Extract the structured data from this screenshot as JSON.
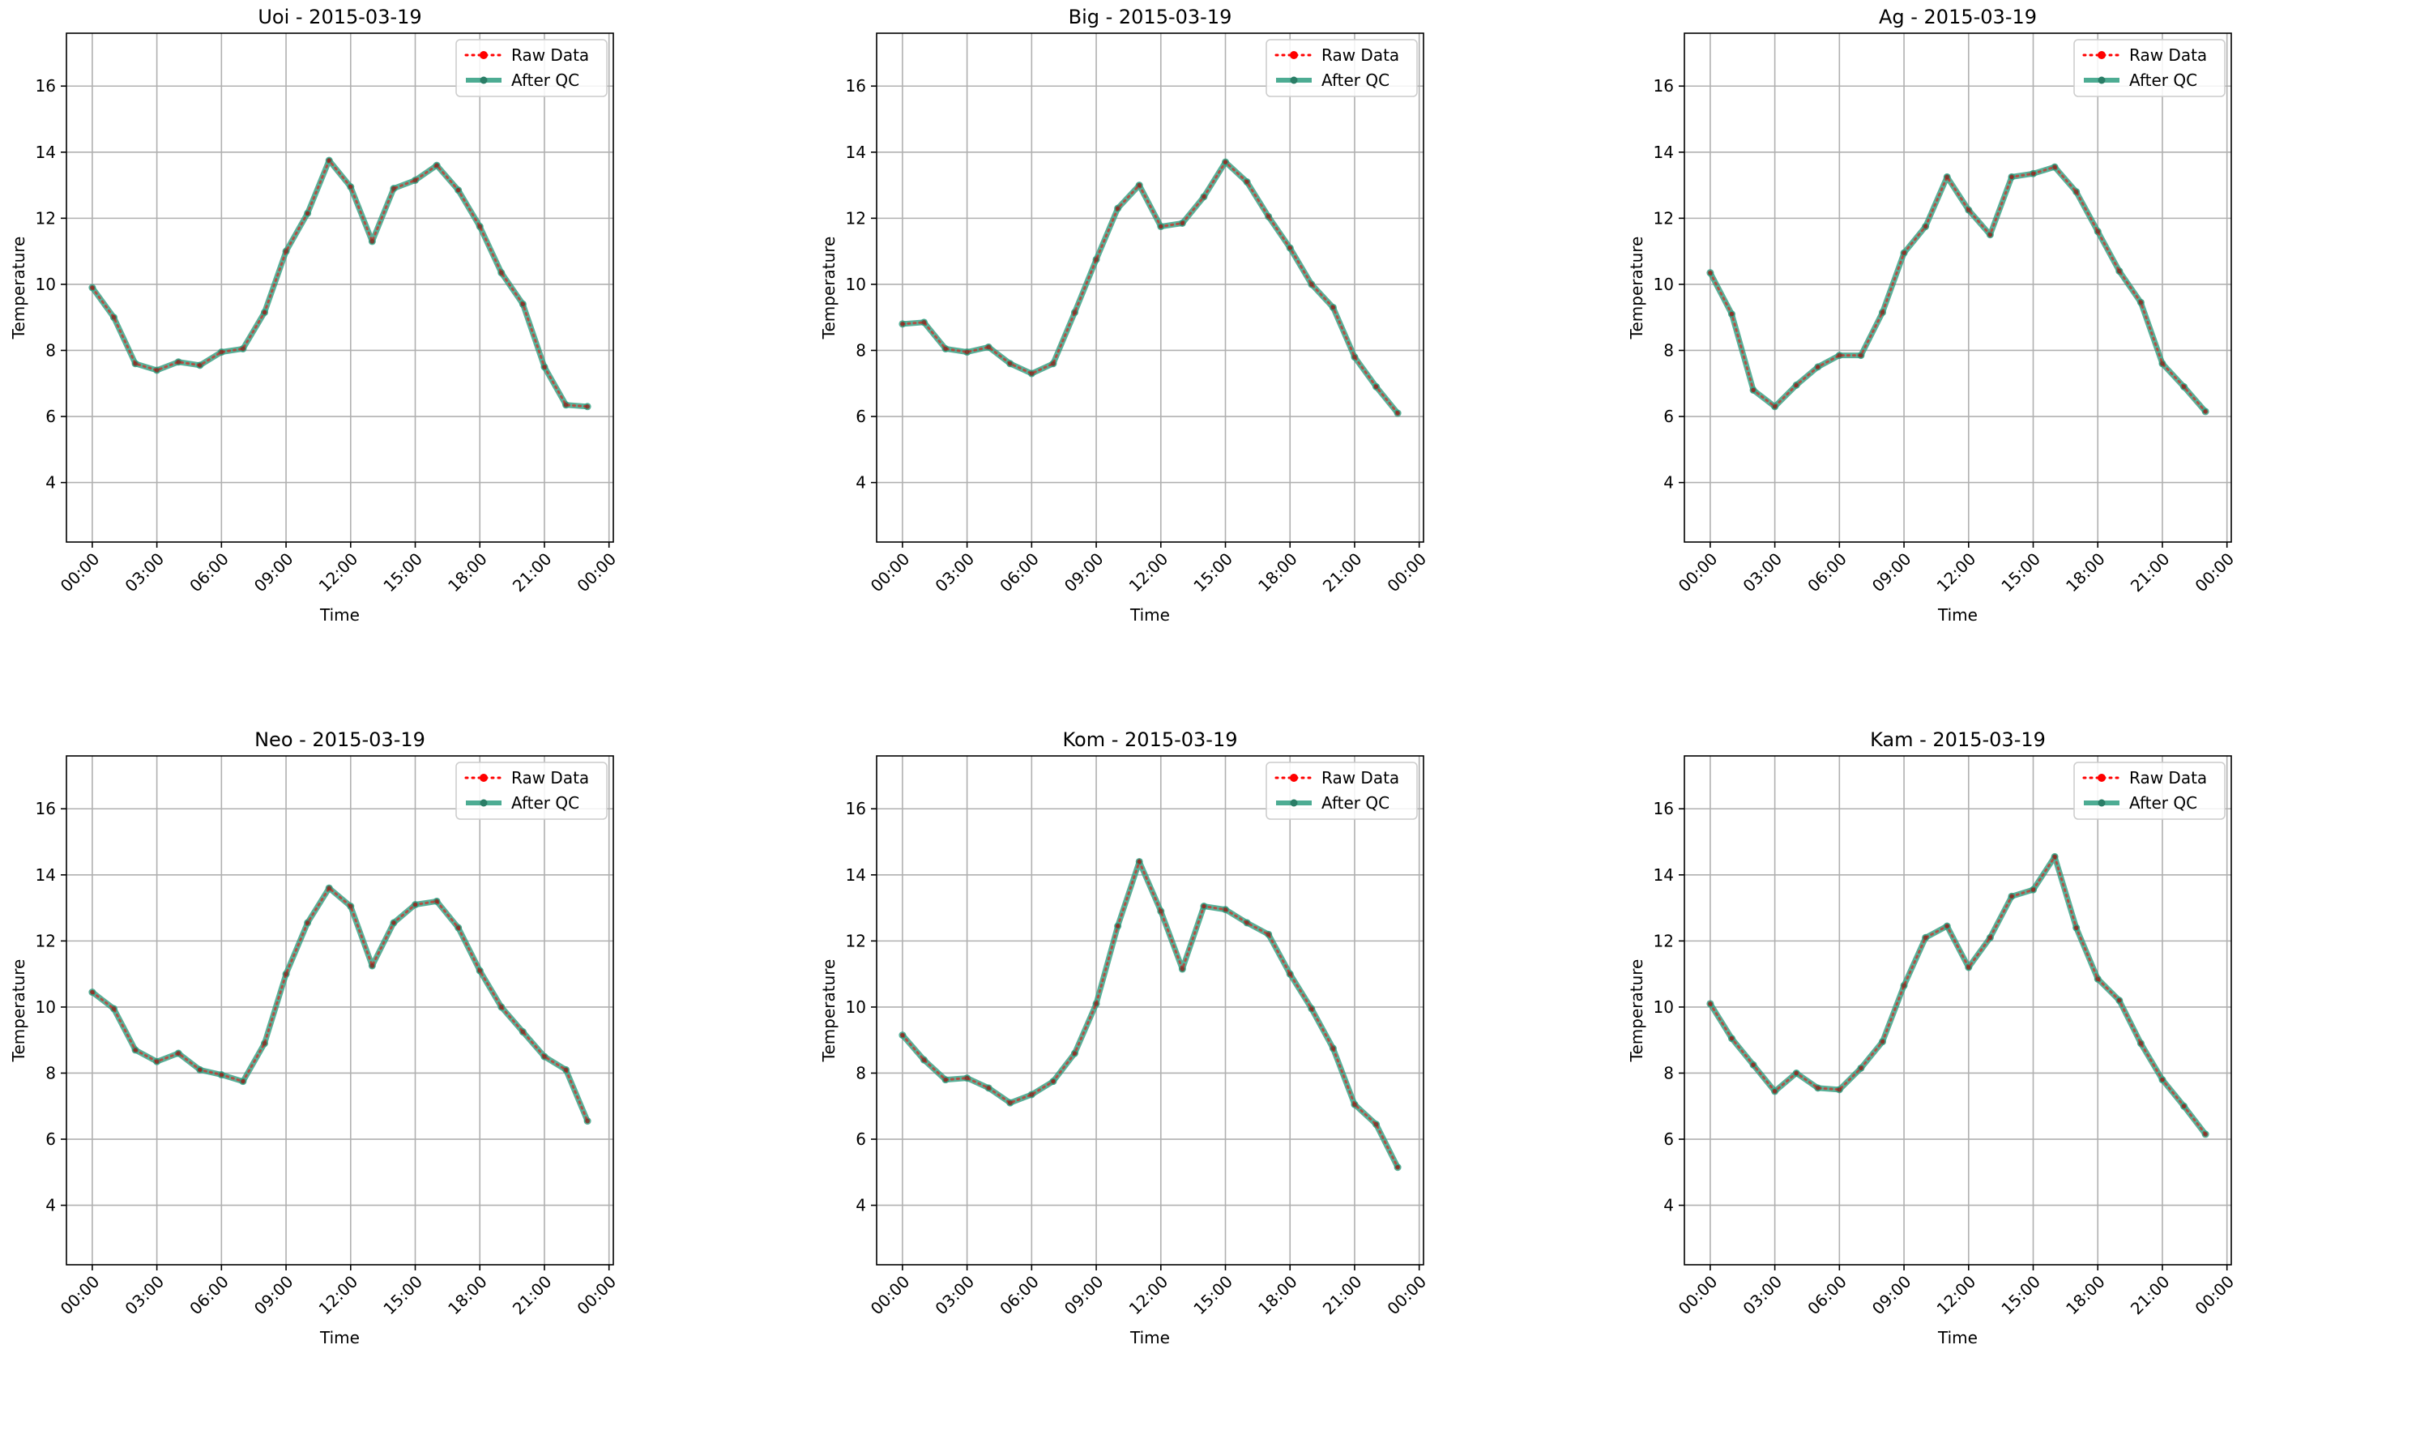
{
  "chart_data": [
    {
      "type": "line",
      "title": "Uoi - 2015-03-19",
      "xlabel": "Time",
      "ylabel": "Temperature",
      "ylim": [
        2.2,
        17.6
      ],
      "yticks": [
        4,
        6,
        8,
        10,
        12,
        14,
        16
      ],
      "xticks": [
        "00:00",
        "03:00",
        "06:00",
        "09:00",
        "12:00",
        "15:00",
        "18:00",
        "21:00",
        "00:00"
      ],
      "grid": true,
      "legend": "top-right",
      "series": [
        {
          "name": "Raw Data",
          "color": "#ff0000",
          "style": "dotted",
          "values": [
            9.9,
            9.0,
            7.6,
            7.4,
            7.65,
            7.55,
            7.95,
            8.05,
            9.15,
            11.0,
            12.15,
            13.75,
            12.95,
            11.3,
            12.9,
            13.15,
            13.6,
            12.85,
            11.75,
            10.35,
            9.4,
            7.5,
            6.35,
            6.3
          ]
        },
        {
          "name": "After QC",
          "color": "#2e9e80",
          "style": "solid",
          "values": [
            9.9,
            9.0,
            7.6,
            7.4,
            7.65,
            7.55,
            7.95,
            8.05,
            9.15,
            11.0,
            12.15,
            13.75,
            12.95,
            11.3,
            12.9,
            13.15,
            13.6,
            12.85,
            11.75,
            10.35,
            9.4,
            7.5,
            6.35,
            6.3
          ]
        }
      ]
    },
    {
      "type": "line",
      "title": "Big - 2015-03-19",
      "xlabel": "Time",
      "ylabel": "Temperature",
      "ylim": [
        2.2,
        17.6
      ],
      "yticks": [
        4,
        6,
        8,
        10,
        12,
        14,
        16
      ],
      "xticks": [
        "00:00",
        "03:00",
        "06:00",
        "09:00",
        "12:00",
        "15:00",
        "18:00",
        "21:00",
        "00:00"
      ],
      "grid": true,
      "legend": "top-right",
      "series": [
        {
          "name": "Raw Data",
          "color": "#ff0000",
          "style": "dotted",
          "values": [
            8.8,
            8.85,
            8.05,
            7.95,
            8.1,
            7.6,
            7.3,
            7.6,
            9.15,
            10.75,
            12.3,
            13.0,
            11.75,
            11.85,
            12.65,
            13.7,
            13.1,
            12.05,
            11.1,
            10.0,
            9.3,
            7.8,
            6.9,
            6.1
          ]
        },
        {
          "name": "After QC",
          "color": "#2e9e80",
          "style": "solid",
          "values": [
            8.8,
            8.85,
            8.05,
            7.95,
            8.1,
            7.6,
            7.3,
            7.6,
            9.15,
            10.75,
            12.3,
            13.0,
            11.75,
            11.85,
            12.65,
            13.7,
            13.1,
            12.05,
            11.1,
            10.0,
            9.3,
            7.8,
            6.9,
            6.1
          ]
        }
      ]
    },
    {
      "type": "line",
      "title": "Ag - 2015-03-19",
      "xlabel": "Time",
      "ylabel": "Temperature",
      "ylim": [
        2.2,
        17.6
      ],
      "yticks": [
        4,
        6,
        8,
        10,
        12,
        14,
        16
      ],
      "xticks": [
        "00:00",
        "03:00",
        "06:00",
        "09:00",
        "12:00",
        "15:00",
        "18:00",
        "21:00",
        "00:00"
      ],
      "grid": true,
      "legend": "top-right",
      "series": [
        {
          "name": "Raw Data",
          "color": "#ff0000",
          "style": "dotted",
          "values": [
            10.35,
            9.1,
            6.8,
            6.3,
            6.95,
            7.5,
            7.85,
            7.85,
            9.15,
            10.95,
            11.75,
            13.25,
            12.25,
            11.5,
            13.25,
            13.35,
            13.55,
            12.8,
            11.6,
            10.4,
            9.45,
            7.6,
            6.9,
            6.15
          ]
        },
        {
          "name": "After QC",
          "color": "#2e9e80",
          "style": "solid",
          "values": [
            10.35,
            9.1,
            6.8,
            6.3,
            6.95,
            7.5,
            7.85,
            7.85,
            9.15,
            10.95,
            11.75,
            13.25,
            12.25,
            11.5,
            13.25,
            13.35,
            13.55,
            12.8,
            11.6,
            10.4,
            9.45,
            7.6,
            6.9,
            6.15
          ]
        }
      ]
    },
    {
      "type": "line",
      "title": "Neo - 2015-03-19",
      "xlabel": "Time",
      "ylabel": "Temperature",
      "ylim": [
        2.2,
        17.6
      ],
      "yticks": [
        4,
        6,
        8,
        10,
        12,
        14,
        16
      ],
      "xticks": [
        "00:00",
        "03:00",
        "06:00",
        "09:00",
        "12:00",
        "15:00",
        "18:00",
        "21:00",
        "00:00"
      ],
      "grid": true,
      "legend": "top-right",
      "series": [
        {
          "name": "Raw Data",
          "color": "#ff0000",
          "style": "dotted",
          "values": [
            10.45,
            9.95,
            8.7,
            8.35,
            8.6,
            8.1,
            7.95,
            7.75,
            8.9,
            11.0,
            12.55,
            13.6,
            13.05,
            11.25,
            12.55,
            13.1,
            13.2,
            12.4,
            11.1,
            10.0,
            9.25,
            8.5,
            8.1,
            6.55
          ]
        },
        {
          "name": "After QC",
          "color": "#2e9e80",
          "style": "solid",
          "values": [
            10.45,
            9.95,
            8.7,
            8.35,
            8.6,
            8.1,
            7.95,
            7.75,
            8.9,
            11.0,
            12.55,
            13.6,
            13.05,
            11.25,
            12.55,
            13.1,
            13.2,
            12.4,
            11.1,
            10.0,
            9.25,
            8.5,
            8.1,
            6.55
          ]
        }
      ]
    },
    {
      "type": "line",
      "title": "Kom - 2015-03-19",
      "xlabel": "Time",
      "ylabel": "Temperature",
      "ylim": [
        2.2,
        17.6
      ],
      "yticks": [
        4,
        6,
        8,
        10,
        12,
        14,
        16
      ],
      "xticks": [
        "00:00",
        "03:00",
        "06:00",
        "09:00",
        "12:00",
        "15:00",
        "18:00",
        "21:00",
        "00:00"
      ],
      "grid": true,
      "legend": "top-right",
      "series": [
        {
          "name": "Raw Data",
          "color": "#ff0000",
          "style": "dotted",
          "values": [
            9.15,
            8.4,
            7.8,
            7.85,
            7.55,
            7.1,
            7.35,
            7.75,
            8.6,
            10.1,
            12.45,
            14.4,
            12.9,
            11.15,
            13.05,
            12.95,
            12.55,
            12.2,
            11.0,
            9.95,
            8.75,
            7.05,
            6.45,
            5.15
          ]
        },
        {
          "name": "After QC",
          "color": "#2e9e80",
          "style": "solid",
          "values": [
            9.15,
            8.4,
            7.8,
            7.85,
            7.55,
            7.1,
            7.35,
            7.75,
            8.6,
            10.1,
            12.45,
            14.4,
            12.9,
            11.15,
            13.05,
            12.95,
            12.55,
            12.2,
            11.0,
            9.95,
            8.75,
            7.05,
            6.45,
            5.15
          ]
        }
      ]
    },
    {
      "type": "line",
      "title": "Kam - 2015-03-19",
      "xlabel": "Time",
      "ylabel": "Temperature",
      "ylim": [
        2.2,
        17.6
      ],
      "yticks": [
        4,
        6,
        8,
        10,
        12,
        14,
        16
      ],
      "xticks": [
        "00:00",
        "03:00",
        "06:00",
        "09:00",
        "12:00",
        "15:00",
        "18:00",
        "21:00",
        "00:00"
      ],
      "grid": true,
      "legend": "top-right",
      "series": [
        {
          "name": "Raw Data",
          "color": "#ff0000",
          "style": "dotted",
          "values": [
            10.1,
            9.05,
            8.25,
            7.45,
            8.0,
            7.55,
            7.5,
            8.15,
            8.95,
            10.65,
            12.1,
            12.45,
            11.2,
            12.1,
            13.35,
            13.55,
            14.55,
            12.4,
            10.85,
            10.2,
            8.9,
            7.8,
            7.0,
            6.15
          ]
        },
        {
          "name": "After QC",
          "color": "#2e9e80",
          "style": "solid",
          "values": [
            10.1,
            9.05,
            8.25,
            7.45,
            8.0,
            7.55,
            7.5,
            8.15,
            8.95,
            10.65,
            12.1,
            12.45,
            11.2,
            12.1,
            13.35,
            13.55,
            14.55,
            12.4,
            10.85,
            10.2,
            8.9,
            7.8,
            7.0,
            6.15
          ]
        }
      ]
    }
  ]
}
